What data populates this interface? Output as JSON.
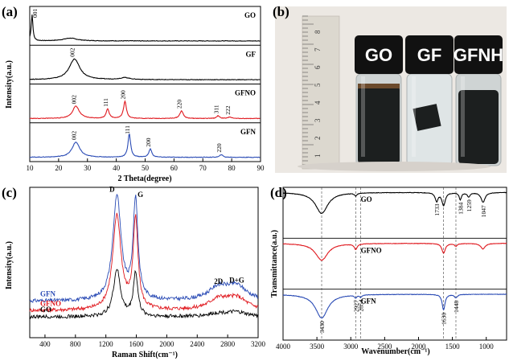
{
  "chart_data": [
    {
      "panel": "(a)",
      "type": "line",
      "xlabel": "2 Theta(degree)",
      "ylabel": "Intensity(a.u.)",
      "xlim": [
        10,
        90
      ],
      "xticks": [
        "10",
        "20",
        "30",
        "40",
        "50",
        "60",
        "70",
        "80",
        "90"
      ],
      "series": [
        {
          "name": "GO",
          "color": "#000000",
          "peaks": [
            {
              "x": 10.8,
              "h": 0.95,
              "w": 0.35
            },
            {
              "x": 24,
              "h": 0.1,
              "w": 3
            }
          ],
          "labels": [
            {
              "x": 10.8,
              "text": "001"
            }
          ]
        },
        {
          "name": "GF",
          "color": "#000000",
          "peaks": [
            {
              "x": 25.5,
              "h": 0.75,
              "w": 2.2
            },
            {
              "x": 43,
              "h": 0.07,
              "w": 2
            }
          ],
          "labels": [
            {
              "x": 25.5,
              "text": "002"
            }
          ]
        },
        {
          "name": "GFNO",
          "color": "#e0191f",
          "peaks": [
            {
              "x": 26,
              "h": 0.45,
              "w": 1.4
            },
            {
              "x": 37,
              "h": 0.35,
              "w": 0.6
            },
            {
              "x": 43,
              "h": 0.62,
              "w": 0.6
            },
            {
              "x": 62.6,
              "h": 0.28,
              "w": 0.7
            },
            {
              "x": 75.3,
              "h": 0.1,
              "w": 0.6
            },
            {
              "x": 79.4,
              "h": 0.06,
              "w": 0.6
            }
          ],
          "labels": [
            {
              "x": 26,
              "text": "002"
            },
            {
              "x": 37,
              "text": "111"
            },
            {
              "x": 43,
              "text": "200"
            },
            {
              "x": 62.6,
              "text": "220"
            },
            {
              "x": 75.3,
              "text": "311"
            },
            {
              "x": 79.4,
              "text": "222"
            }
          ]
        },
        {
          "name": "GFN",
          "color": "#2a4bb5",
          "peaks": [
            {
              "x": 26,
              "h": 0.55,
              "w": 1.6
            },
            {
              "x": 44.5,
              "h": 0.85,
              "w": 0.55
            },
            {
              "x": 51.8,
              "h": 0.3,
              "w": 0.6
            },
            {
              "x": 76.4,
              "h": 0.1,
              "w": 0.6
            }
          ],
          "labels": [
            {
              "x": 26,
              "text": "002"
            },
            {
              "x": 44.5,
              "text": "111"
            },
            {
              "x": 51.8,
              "text": "200"
            },
            {
              "x": 76.4,
              "text": "220"
            }
          ]
        }
      ]
    },
    {
      "panel": "(c)",
      "type": "line",
      "xlabel": "Raman Shift(cm⁻¹)",
      "ylabel": "Intensity(a.u.)",
      "xlim": [
        200,
        3200
      ],
      "xticks": [
        "400",
        "800",
        "1200",
        "1600",
        "2000",
        "2400",
        "2800",
        "3200"
      ],
      "annotations": [
        {
          "x": 1345,
          "text": "D"
        },
        {
          "x": 1590,
          "text": "G"
        },
        {
          "x": 2680,
          "text": "2D"
        },
        {
          "x": 2920,
          "text": "D+G"
        }
      ],
      "series": [
        {
          "name": "GFN",
          "color": "#2a4bb5",
          "offset": 0.5,
          "peaks": [
            {
              "x": 1345,
              "h": 1.0,
              "w": 65
            },
            {
              "x": 1590,
              "h": 0.95,
              "w": 38
            },
            {
              "x": 2680,
              "h": 0.12,
              "w": 160
            },
            {
              "x": 2920,
              "h": 0.13,
              "w": 160
            }
          ]
        },
        {
          "name": "GFNO",
          "color": "#e0191f",
          "offset": 0.2,
          "peaks": [
            {
              "x": 1345,
              "h": 0.9,
              "w": 65
            },
            {
              "x": 1590,
              "h": 0.85,
              "w": 38
            },
            {
              "x": 2680,
              "h": 0.1,
              "w": 160
            },
            {
              "x": 2920,
              "h": 0.11,
              "w": 160
            }
          ]
        },
        {
          "name": "GO",
          "color": "#000000",
          "offset": 0.0,
          "peaks": [
            {
              "x": 1345,
              "h": 0.45,
              "w": 55
            },
            {
              "x": 1590,
              "h": 0.42,
              "w": 35
            },
            {
              "x": 2680,
              "h": 0.03,
              "w": 160
            },
            {
              "x": 2920,
              "h": 0.04,
              "w": 160
            }
          ]
        }
      ]
    },
    {
      "panel": "(d)",
      "type": "line",
      "xlabel": "Wavenumber(cm⁻¹)",
      "ylabel": "Transmittance(a.u.)",
      "xlim": [
        4000,
        700
      ],
      "xticks": [
        "4000",
        "3500",
        "3000",
        "2500",
        "2000",
        "1500",
        "1000"
      ],
      "guides": [
        3430,
        2927,
        2854,
        1630,
        1448
      ],
      "series": [
        {
          "name": "GO",
          "color": "#000000",
          "dips": [
            {
              "x": 3430,
              "h": 0.75,
              "w": 110
            },
            {
              "x": 2927,
              "h": 0.1,
              "w": 20
            },
            {
              "x": 1733,
              "h": 0.3,
              "w": 25
            },
            {
              "x": 1630,
              "h": 0.45,
              "w": 30
            },
            {
              "x": 1384,
              "h": 0.25,
              "w": 20
            },
            {
              "x": 1259,
              "h": 0.15,
              "w": 25
            },
            {
              "x": 1047,
              "h": 0.35,
              "w": 35
            }
          ],
          "labels": [
            {
              "x": 1733,
              "text": "1733"
            },
            {
              "x": 1384,
              "text": "1384"
            },
            {
              "x": 1259,
              "text": "1259"
            },
            {
              "x": 1047,
              "text": "1047"
            }
          ]
        },
        {
          "name": "GFNO",
          "color": "#e0191f",
          "dips": [
            {
              "x": 3430,
              "h": 0.6,
              "w": 110
            },
            {
              "x": 2927,
              "h": 0.2,
              "w": 25
            },
            {
              "x": 1630,
              "h": 0.35,
              "w": 30
            },
            {
              "x": 1448,
              "h": 0.1,
              "w": 25
            },
            {
              "x": 1050,
              "h": 0.2,
              "w": 40
            }
          ],
          "labels": []
        },
        {
          "name": "GFN",
          "color": "#2a4bb5",
          "dips": [
            {
              "x": 3430,
              "h": 0.85,
              "w": 110
            },
            {
              "x": 2927,
              "h": 0.1,
              "w": 20
            },
            {
              "x": 2854,
              "h": 0.08,
              "w": 18
            },
            {
              "x": 1630,
              "h": 0.55,
              "w": 25
            },
            {
              "x": 1448,
              "h": 0.12,
              "w": 25
            }
          ],
          "labels": [
            {
              "x": 3430,
              "text": "3430"
            },
            {
              "x": 2927,
              "text": "2927"
            },
            {
              "x": 2854,
              "text": "2854"
            },
            {
              "x": 1630,
              "text": "1630"
            },
            {
              "x": 1448,
              "text": "1448"
            }
          ]
        }
      ]
    }
  ],
  "panels": {
    "a": "(a)",
    "b": "(b)",
    "c": "(c)",
    "d": "(d)"
  },
  "photo": {
    "labels": [
      "GO",
      "GF",
      "GFNH"
    ],
    "ruler_marks": [
      "1",
      "2",
      "3",
      "4",
      "5",
      "6",
      "7",
      "8"
    ],
    "colors": {
      "background": "#ece8e3",
      "cap": "#111111",
      "dark_liquid": "#1c1f1f",
      "clear_liquid": "#dfe5e6",
      "ruler": "#dcd8cf"
    }
  }
}
